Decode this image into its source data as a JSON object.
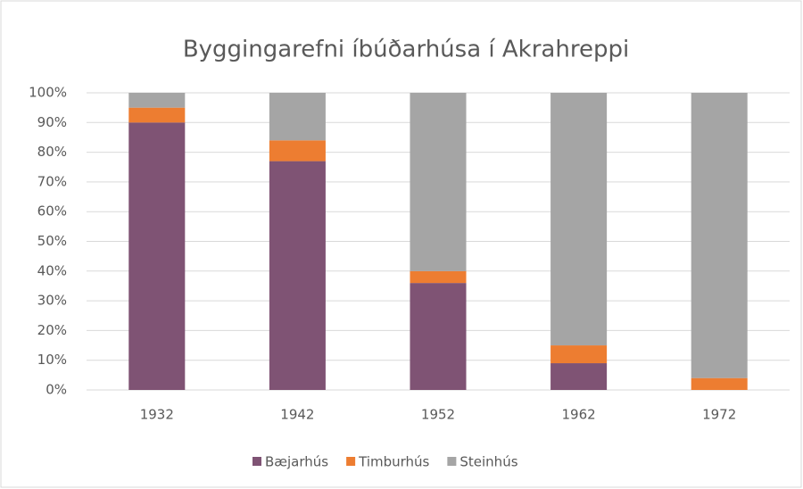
{
  "chart_data": {
    "type": "stacked_bar",
    "title": "Byggingarefni íbúðarhúsa í Akrahreppi",
    "categories": [
      "1932",
      "1942",
      "1952",
      "1962",
      "1972"
    ],
    "series": [
      {
        "name": "Bæjarhús",
        "color": "#7f5374",
        "values": [
          90,
          77,
          36,
          9,
          0
        ]
      },
      {
        "name": "Timburhús",
        "color": "#ed7d31",
        "values": [
          5,
          7,
          4,
          6,
          4
        ]
      },
      {
        "name": "Steinhús",
        "color": "#a5a5a5",
        "values": [
          5,
          16,
          60,
          85,
          96
        ]
      }
    ],
    "ylim": [
      0,
      100
    ],
    "yticks": [
      {
        "value": 0,
        "label": "0%"
      },
      {
        "value": 10,
        "label": "10%"
      },
      {
        "value": 20,
        "label": "20%"
      },
      {
        "value": 30,
        "label": "30%"
      },
      {
        "value": 40,
        "label": "40%"
      },
      {
        "value": 50,
        "label": "50%"
      },
      {
        "value": 60,
        "label": "60%"
      },
      {
        "value": 70,
        "label": "70%"
      },
      {
        "value": 80,
        "label": "80%"
      },
      {
        "value": 90,
        "label": "90%"
      },
      {
        "value": 100,
        "label": "100%"
      }
    ],
    "grid": true,
    "legend": "bottom"
  }
}
